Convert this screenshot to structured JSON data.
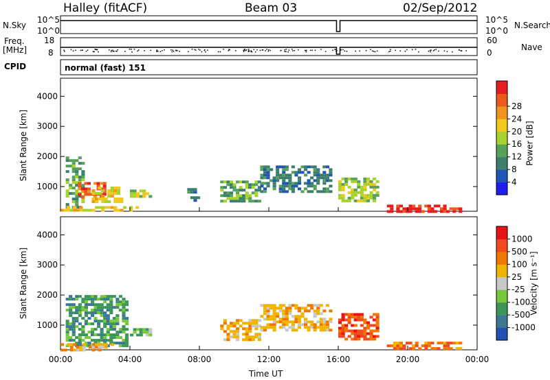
{
  "header": {
    "station": "Halley (fitACF)",
    "beam": "Beam 03",
    "date": "02/Sep/2012"
  },
  "top_panels": {
    "nsky_label": "N.Sky",
    "nsky_ticks": [
      "10^5",
      "10^0"
    ],
    "nsearch_label": "N.Search",
    "nsearch_ticks": [
      "10^5",
      "10^0"
    ],
    "freq_label": "Freq.",
    "freq_unit": "[MHz]",
    "freq_ticks": [
      "18",
      "8"
    ],
    "nave_label": "Nave",
    "nave_ticks": [
      "60",
      "0"
    ],
    "cpid_label": "CPID",
    "cpid_value": "normal (fast) 151"
  },
  "chart_data": [
    {
      "type": "heatmap",
      "name": "power",
      "ylabel": "Slant Range [km]",
      "xlabel": "Time UT",
      "ylim": [
        180,
        4600
      ],
      "xlim": [
        0,
        24
      ],
      "y_ticks": [
        "1000",
        "2000",
        "3000",
        "4000"
      ],
      "x_ticks": [
        "00:00",
        "04:00",
        "08:00",
        "12:00",
        "16:00",
        "20:00",
        "00:00"
      ],
      "colorbar": {
        "label": "Power [dB]",
        "ticks": [
          "4",
          "8",
          "12",
          "16",
          "20",
          "24",
          "28"
        ],
        "colors": [
          "#1e1ef0",
          "#2255b8",
          "#3c7f6c",
          "#56a25a",
          "#a8d22f",
          "#f0c81e",
          "#f0961e",
          "#ec5a1e",
          "#e31e1e"
        ]
      },
      "regions": [
        {
          "t0": 0.3,
          "t1": 1.2,
          "r0": 300,
          "r1": 2000,
          "level": 3
        },
        {
          "t0": 1.0,
          "t1": 2.6,
          "r0": 650,
          "r1": 1150,
          "level": 7
        },
        {
          "t0": 1.8,
          "t1": 3.6,
          "r0": 500,
          "r1": 1000,
          "level": 5
        },
        {
          "t0": 4.0,
          "t1": 5.2,
          "r0": 700,
          "r1": 900,
          "level": 4
        },
        {
          "t0": 7.3,
          "t1": 8.0,
          "r0": 500,
          "r1": 950,
          "level": 2
        },
        {
          "t0": 9.2,
          "t1": 11.5,
          "r0": 550,
          "r1": 1200,
          "level": 3
        },
        {
          "t0": 11.5,
          "t1": 15.6,
          "r0": 800,
          "r1": 1700,
          "level": 2
        },
        {
          "t0": 16.0,
          "t1": 18.3,
          "r0": 500,
          "r1": 1300,
          "level": 4
        },
        {
          "t0": 18.8,
          "t1": 23.0,
          "r0": 200,
          "r1": 400,
          "level": 8
        },
        {
          "t0": 0.0,
          "t1": 4.5,
          "r0": 180,
          "r1": 350,
          "level": 5
        }
      ]
    },
    {
      "type": "heatmap",
      "name": "velocity",
      "ylabel": "Slant Range [km]",
      "xlabel": "Time UT",
      "ylim": [
        180,
        4600
      ],
      "xlim": [
        0,
        24
      ],
      "y_ticks": [
        "1000",
        "2000",
        "3000",
        "4000"
      ],
      "x_ticks": [
        "00:00",
        "04:00",
        "08:00",
        "12:00",
        "16:00",
        "20:00",
        "00:00"
      ],
      "colorbar": {
        "label": "Velocity [m s⁻¹]",
        "ticks": [
          "1000",
          "500",
          "100",
          "25",
          "-25",
          "-100",
          "-500",
          "-1000"
        ],
        "colors": [
          "#2350b4",
          "#3c7896",
          "#3c965a",
          "#78c83c",
          "#c8c8c8",
          "#f0b400",
          "#f07800",
          "#f04b1e",
          "#e61414"
        ]
      },
      "regions": [
        {
          "t0": 0.3,
          "t1": 3.8,
          "r0": 300,
          "r1": 2000,
          "level": 2
        },
        {
          "t0": 4.0,
          "t1": 5.2,
          "r0": 700,
          "r1": 900,
          "level": 3
        },
        {
          "t0": 9.2,
          "t1": 11.5,
          "r0": 550,
          "r1": 1200,
          "level": 5
        },
        {
          "t0": 11.5,
          "t1": 15.6,
          "r0": 800,
          "r1": 1700,
          "level": 5
        },
        {
          "t0": 16.0,
          "t1": 18.3,
          "r0": 500,
          "r1": 1400,
          "level": 7
        },
        {
          "t0": 18.8,
          "t1": 23.0,
          "r0": 200,
          "r1": 450,
          "level": 6
        },
        {
          "t0": 0.0,
          "t1": 3.0,
          "r0": 180,
          "r1": 400,
          "level": 5
        }
      ]
    }
  ]
}
